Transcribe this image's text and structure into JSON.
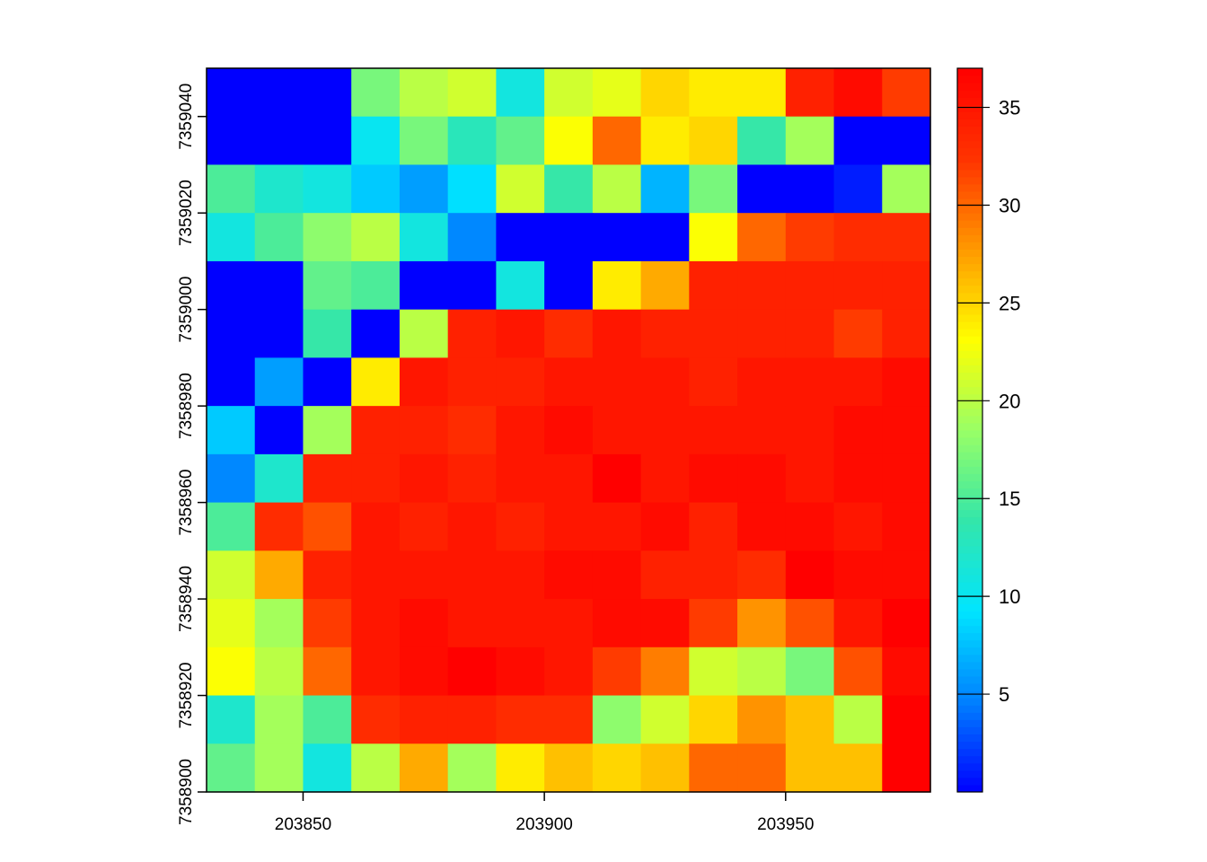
{
  "chart_data": {
    "type": "heatmap",
    "title": "",
    "xlabel": "",
    "ylabel": "",
    "x_ticks": [
      "203850",
      "203900",
      "203950"
    ],
    "y_ticks": [
      "7358900",
      "7358920",
      "7358940",
      "7358960",
      "7358980",
      "7359000",
      "7359020",
      "7359040"
    ],
    "colorbar_ticks": [
      "5",
      "10",
      "15",
      "20",
      "25",
      "30",
      "35"
    ],
    "xlim": [
      203830,
      203980
    ],
    "ylim": [
      7358900,
      7359050
    ],
    "cell_size": 10,
    "value_range": [
      0,
      37
    ],
    "colorbar_position": "right",
    "palette": [
      "#0000ff",
      "#0080ff",
      "#00e5ff",
      "#33e6aa",
      "#99ff66",
      "#ffff00",
      "#ff9900",
      "#ff3300",
      "#ff0000"
    ],
    "grid": [
      [
        0,
        0,
        0,
        17,
        20,
        21,
        11,
        21,
        22,
        25,
        24,
        24,
        34,
        36,
        32
      ],
      [
        0,
        0,
        0,
        10,
        17,
        13,
        16,
        23,
        30,
        24,
        25,
        14,
        19,
        0,
        0
      ],
      [
        15,
        12,
        11,
        8,
        6,
        9,
        21,
        14,
        20,
        7,
        17,
        0,
        0,
        1,
        19
      ],
      [
        11,
        15,
        18,
        20,
        11,
        5,
        0,
        0,
        0,
        0,
        23,
        30,
        32,
        33,
        33
      ],
      [
        0,
        0,
        16,
        15,
        0,
        0,
        11,
        0,
        24,
        27,
        34,
        34,
        34,
        34,
        34
      ],
      [
        0,
        0,
        14,
        0,
        20,
        34,
        35,
        33,
        35,
        34,
        34,
        34,
        34,
        32,
        34
      ],
      [
        0,
        6,
        0,
        24,
        35,
        34,
        34,
        35,
        35,
        35,
        34,
        35,
        35,
        35,
        36
      ],
      [
        8,
        0,
        19,
        34,
        34,
        33,
        35,
        36,
        35,
        35,
        35,
        35,
        35,
        36,
        36
      ],
      [
        5,
        12,
        34,
        34,
        35,
        34,
        35,
        35,
        37,
        35,
        36,
        36,
        35,
        36,
        36
      ],
      [
        15,
        33,
        31,
        35,
        34,
        35,
        34,
        35,
        35,
        36,
        34,
        36,
        36,
        35,
        36
      ],
      [
        21,
        27,
        34,
        35,
        35,
        35,
        35,
        36,
        36,
        34,
        34,
        33,
        37,
        36,
        36
      ],
      [
        22,
        19,
        32,
        35,
        36,
        35,
        35,
        35,
        36,
        36,
        32,
        28,
        31,
        35,
        37
      ],
      [
        23,
        20,
        30,
        35,
        36,
        37,
        36,
        35,
        32,
        29,
        21,
        20,
        17,
        31,
        36
      ],
      [
        12,
        19,
        15,
        33,
        34,
        34,
        33,
        33,
        18,
        21,
        25,
        28,
        26,
        20,
        37
      ],
      [
        16,
        19,
        11,
        20,
        27,
        19,
        24,
        26,
        25,
        26,
        30,
        30,
        26,
        26,
        37
      ]
    ]
  }
}
